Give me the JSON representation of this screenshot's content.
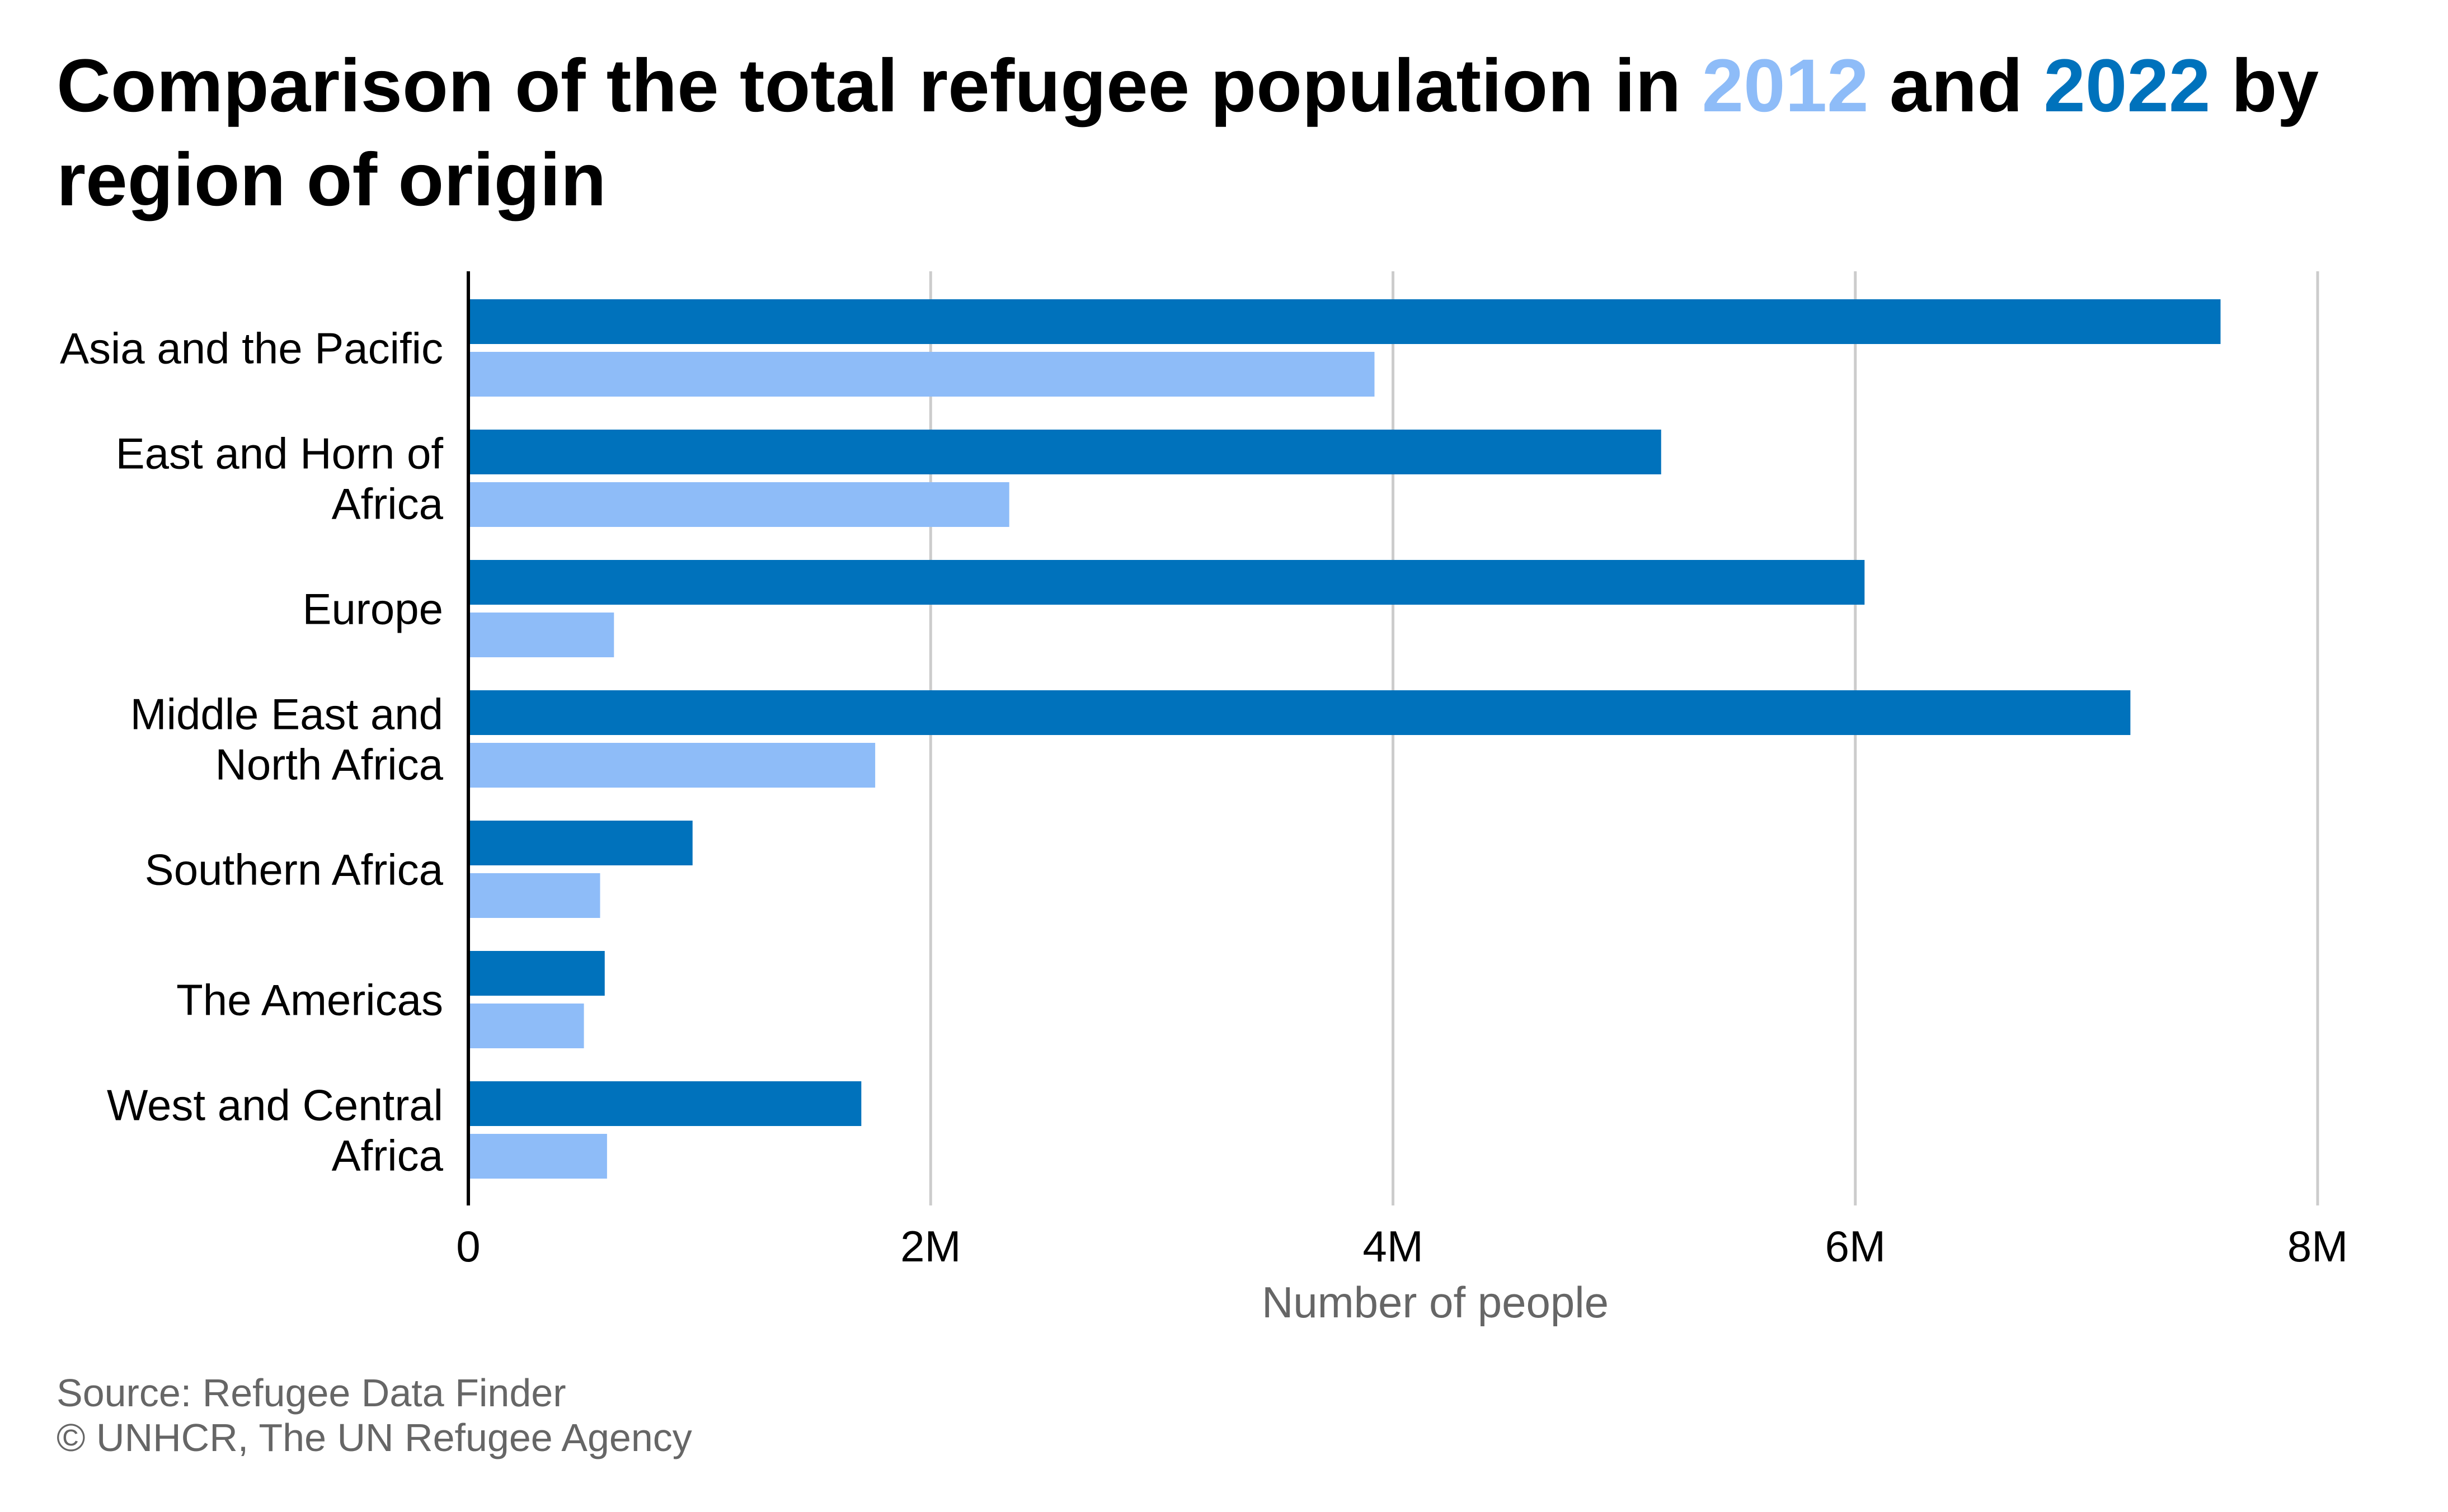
{
  "title": {
    "part1": "Comparison of the total refugee population in ",
    "year1": "2012",
    "part2": " and ",
    "year2": "2022",
    "part3": " by region of origin"
  },
  "source": {
    "line1": "Source: Refugee Data Finder",
    "line2": "© UNHCR, The UN Refugee Agency"
  },
  "colors": {
    "series_2022": "#0072bc",
    "series_2012": "#8ebcf8",
    "grid": "#cccccc",
    "axis": "#000000",
    "label": "#000000",
    "axis_title": "#666666"
  },
  "chart_data": {
    "type": "bar",
    "orientation": "horizontal",
    "categories": [
      [
        "Asia and the Pacific"
      ],
      [
        "East and Horn of",
        "Africa"
      ],
      [
        "Europe"
      ],
      [
        "Middle East and",
        "North Africa"
      ],
      [
        "Southern Africa"
      ],
      [
        "The Americas"
      ],
      [
        "West and Central",
        "Africa"
      ]
    ],
    "series": [
      {
        "name": "2022",
        "values": [
          7580000,
          5160000,
          6040000,
          7190000,
          970000,
          590000,
          1700000
        ]
      },
      {
        "name": "2012",
        "values": [
          3920000,
          2340000,
          630000,
          1760000,
          570000,
          500000,
          600000
        ]
      }
    ],
    "xlabel": "Number of people",
    "xlim": [
      0,
      8000000
    ],
    "xticks": [
      {
        "value": 0,
        "label": "0"
      },
      {
        "value": 2000000,
        "label": "2M"
      },
      {
        "value": 4000000,
        "label": "4M"
      },
      {
        "value": 6000000,
        "label": "6M"
      },
      {
        "value": 8000000,
        "label": "8M"
      }
    ],
    "grid": "vertical",
    "legend": "in title"
  }
}
